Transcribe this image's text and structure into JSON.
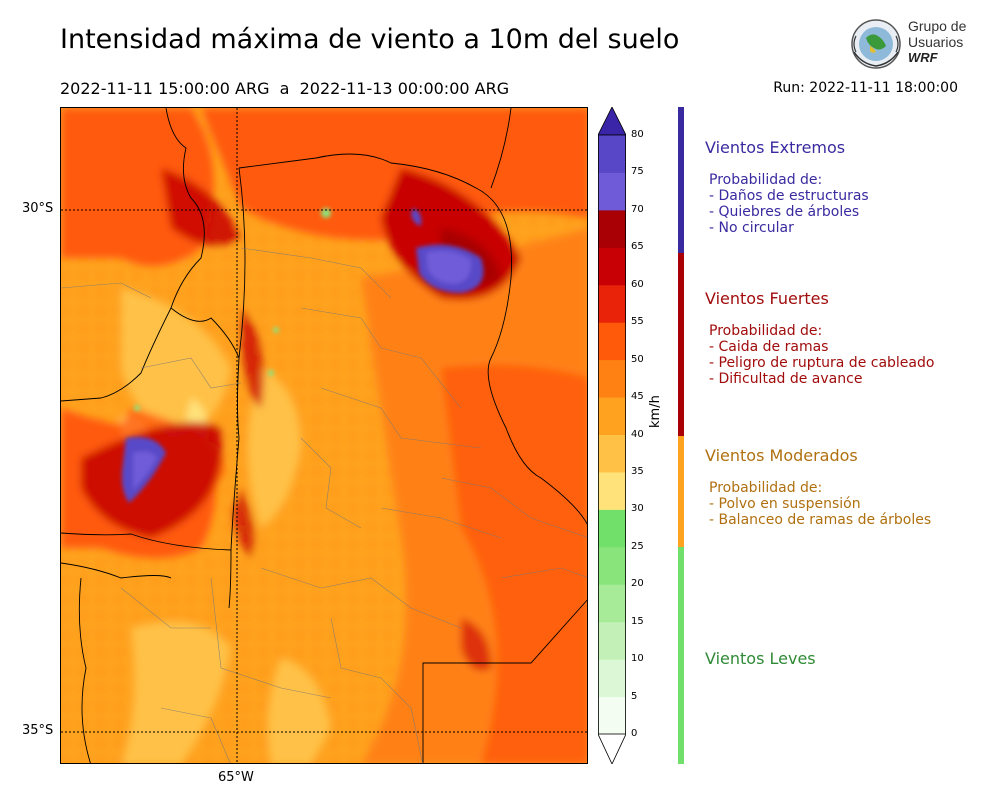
{
  "header": {
    "title": "Intensidad máxima de viento a 10m del suelo",
    "period": "2022-11-11 15:00:00 ARG  a  2022-11-13 00:00:00 ARG",
    "run": "Run: 2022-11-11 18:00:00"
  },
  "logo": {
    "line1": "Grupo de",
    "line2": "Usuarios",
    "line3": "WRF"
  },
  "map": {
    "lat_labels": [
      "30°S",
      "35°S"
    ],
    "lon_labels": [
      "65°W"
    ]
  },
  "colorbar": {
    "unit": "km/h",
    "ticks": [
      "0",
      "5",
      "10",
      "15",
      "20",
      "25",
      "30",
      "35",
      "40",
      "45",
      "50",
      "55",
      "60",
      "65",
      "70",
      "75",
      "80"
    ],
    "colors": [
      "#f3fdf1",
      "#dcf7d6",
      "#c2f0b7",
      "#a7ea98",
      "#8ae47c",
      "#71e06a",
      "#ffe27a",
      "#ffc146",
      "#ffa21f",
      "#ff8113",
      "#ff5a0a",
      "#e8230a",
      "#c80006",
      "#a80004",
      "#6f5bd8",
      "#5848c8",
      "#4433b5"
    ],
    "over_color": "#3a24a8",
    "under_color": "#ffffff"
  },
  "categories": [
    {
      "title": "Vientos Extremos",
      "color": "#3a2aa0",
      "bar_color": "#3a2aa0",
      "header": "Probabilidad de:",
      "items": [
        "- Daños de estructuras",
        "- Quiebres de árboles",
        "- No circular"
      ]
    },
    {
      "title": "Vientos Fuertes",
      "color": "#a10c0c",
      "bar_color": "#a80004",
      "header": "Probabilidad de:",
      "items": [
        "- Caida de ramas",
        "- Peligro de ruptura de cableado",
        "- Dificultad de avance"
      ]
    },
    {
      "title": "Vientos Moderados",
      "color": "#b07010",
      "bar_color": "#ffa21f",
      "header": "Probabilidad de:",
      "items": [
        "- Polvo en suspensión",
        "- Balanceo de ramas de árboles"
      ]
    },
    {
      "title": "Vientos Leves",
      "color": "#2f8a35",
      "bar_color": "#71e06a",
      "header": "",
      "items": []
    }
  ]
}
